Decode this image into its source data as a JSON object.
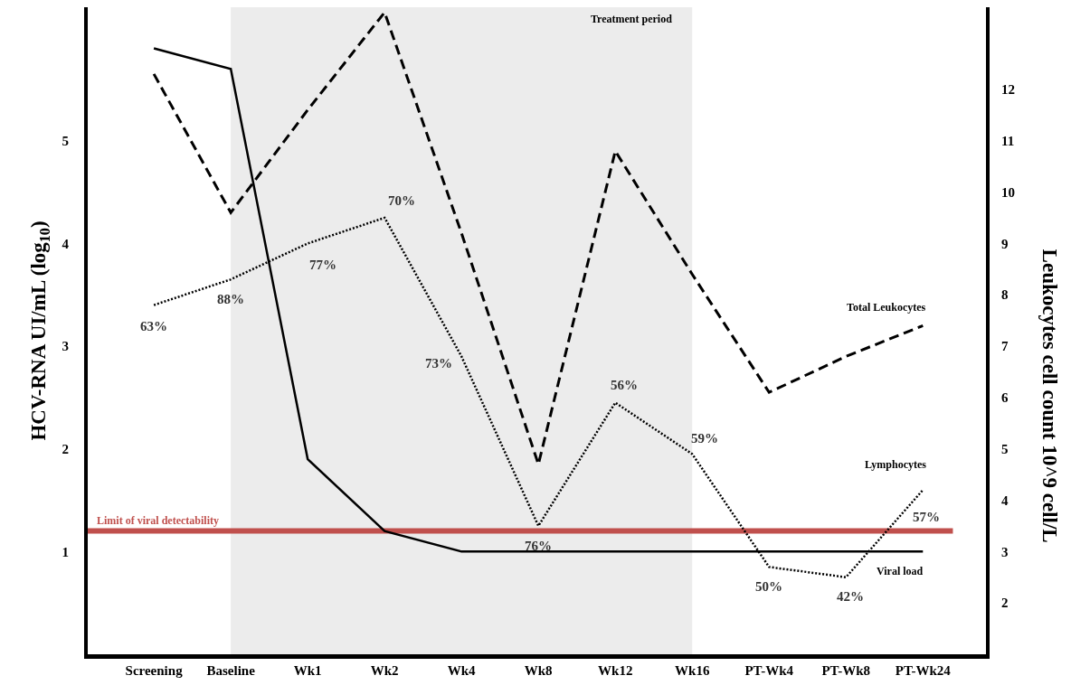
{
  "chart_data": {
    "type": "line",
    "categories": [
      "Screening",
      "Baseline",
      "Wk1",
      "Wk2",
      "Wk4",
      "Wk8",
      "Wk12",
      "Wk16",
      "PT-Wk4",
      "PT-Wk8",
      "PT-Wk24"
    ],
    "ylabel": "HCV-RNA UI/mL (log$_{10}$)",
    "y2label": "Leukocytes cell count 10^9 cell/L",
    "ylim": [
      0,
      6.3
    ],
    "yticks": [
      1,
      2,
      3,
      4,
      5
    ],
    "y2lim": [
      1,
      13.6
    ],
    "y2ticks": [
      2,
      3,
      4,
      5,
      6,
      7,
      8,
      9,
      10,
      11,
      12
    ],
    "series": [
      {
        "name": "Viral load",
        "color": "#000000",
        "line_style": "solid",
        "values": [
          5.9,
          5.7,
          1.9,
          1.2,
          1.0,
          1.0,
          1.0,
          1.0,
          1.0,
          1.0,
          1.0
        ]
      },
      {
        "name": "Total Leukocytes",
        "color": "#000000",
        "line_style": "dashed",
        "axis": "y2",
        "values": [
          12.3,
          9.6,
          11.6,
          13.5,
          9.2,
          4.7,
          10.8,
          8.4,
          6.1,
          6.8,
          7.4
        ]
      },
      {
        "name": "Lymphocytes",
        "color": "#000000",
        "line_style": "dotted",
        "axis": "y2",
        "values": [
          7.8,
          8.3,
          9.0,
          9.5,
          6.8,
          3.5,
          5.9,
          4.9,
          2.7,
          2.5,
          4.2
        ]
      }
    ],
    "annotations": [
      {
        "text": "63%",
        "x": "Screening",
        "y": 3.4
      },
      {
        "text": "88%",
        "x": "Baseline",
        "y": 3.65
      },
      {
        "text": "77%",
        "x": "Wk1",
        "y": 4.0
      },
      {
        "text": "70%",
        "x": "Wk2",
        "y": 4.25
      },
      {
        "text": "73%",
        "x": "Wk4",
        "y": 2.9
      },
      {
        "text": "76%",
        "x": "Wk8",
        "y": 1.25
      },
      {
        "text": "56%",
        "x": "Wk12",
        "y": 2.45
      },
      {
        "text": "59%",
        "x": "Wk16",
        "y": 1.95
      },
      {
        "text": "50%",
        "x": "PT-Wk4",
        "y": 0.85
      },
      {
        "text": "42%",
        "x": "PT-Wk8",
        "y": 0.75
      },
      {
        "text": "57%",
        "x": "PT-Wk24",
        "y": 1.6
      }
    ],
    "ref_lines": [
      {
        "axis": "y",
        "value": 1.2,
        "label": "Limit of viral detectability",
        "color": "#c0504d"
      }
    ],
    "bands": [
      {
        "axis": "x",
        "from": "Baseline",
        "to": "Wk16",
        "label": "Treatment period",
        "color": "#ececec"
      }
    ],
    "marker": "none"
  }
}
